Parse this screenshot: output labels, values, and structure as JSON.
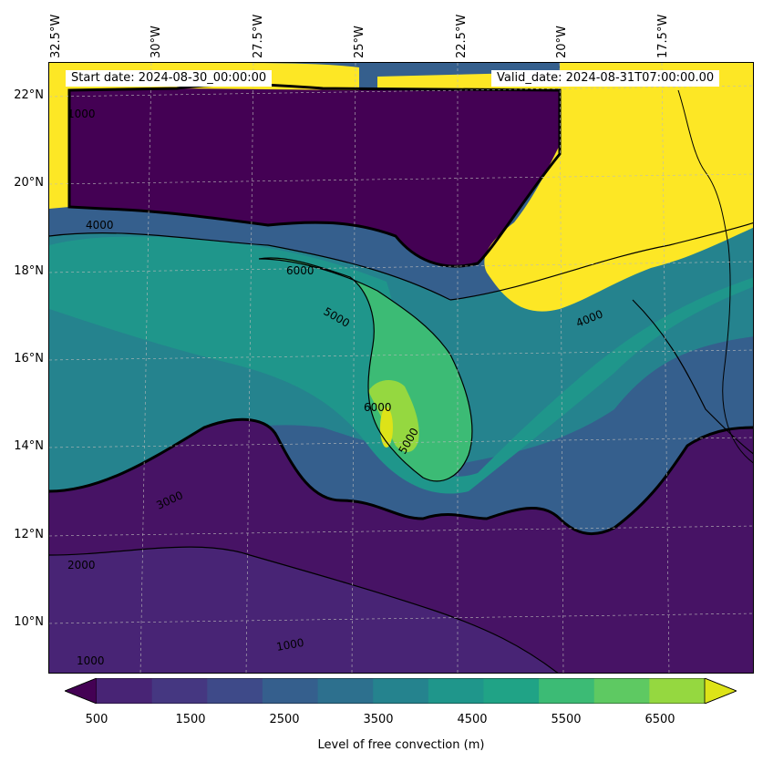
{
  "map": {
    "start_date": "Start date: 2024-08-30_00:00:00",
    "valid_date": "Valid_date: 2024-08-31T07:00:00.00",
    "lon_labels": [
      "32.5°W",
      "30°W",
      "27.5°W",
      "25°W",
      "22.5°W",
      "20°W",
      "17.5°W"
    ],
    "lat_labels": [
      "22°N",
      "20°N",
      "18°N",
      "16°N",
      "14°N",
      "12°N",
      "10°N"
    ],
    "contour_labels": [
      "1000",
      "2000",
      "3000",
      "4000",
      "5000",
      "6000"
    ],
    "colors": {
      "500": "#440154",
      "1000": "#471365",
      "1500": "#482475",
      "2000": "#453781",
      "2500": "#3e4a89",
      "3000": "#355f8d",
      "3500": "#2d708e",
      "4000": "#25838e",
      "4500": "#1f968b",
      "5000": "#20a386",
      "5500": "#3cbb75",
      "6000": "#5ec962",
      "6500": "#95d840",
      "7000": "#dde318"
    }
  },
  "colorbar": {
    "tick_labels": [
      "500",
      "1500",
      "2500",
      "3500",
      "4500",
      "5500",
      "6500"
    ],
    "title": "Level of free convection (m)",
    "levels": [
      500,
      1000,
      1500,
      2000,
      2500,
      3000,
      3500,
      4000,
      4500,
      5000,
      5500,
      6000,
      6500,
      7000
    ],
    "colors": [
      "#440154",
      "#482475",
      "#453781",
      "#3e4a89",
      "#355f8d",
      "#2d708e",
      "#25838e",
      "#1f968b",
      "#20a386",
      "#3cbb75",
      "#5ec962",
      "#95d840",
      "#dde318"
    ],
    "extend": "both"
  }
}
